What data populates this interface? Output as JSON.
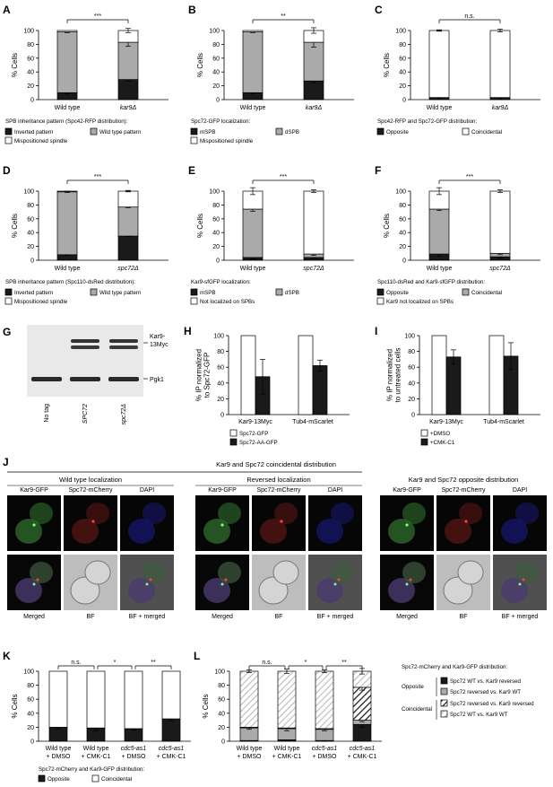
{
  "colors": {
    "black": "#1a1a1a",
    "gray": "#aaaaaa",
    "white": "#ffffff",
    "darkgray": "#555555"
  },
  "panels": {
    "A": {
      "letter": "A",
      "ylabel": "% Cells",
      "yticks": [
        "0",
        "20",
        "40",
        "60",
        "80",
        "100"
      ],
      "categories": [
        "Wild type",
        "kar9Δ"
      ],
      "italic": [
        false,
        true
      ],
      "sig": "***",
      "caption": "SPB inheritance pattern (Spc42-RFP distribution):",
      "legend": [
        {
          "label": "Inverted pattern",
          "color": "#1a1a1a"
        },
        {
          "label": "Wild type pattern",
          "color": "#aaaaaa"
        },
        {
          "label": "Mispositioned spindle",
          "color": "#ffffff"
        }
      ]
    },
    "B": {
      "letter": "B",
      "ylabel": "% Cells",
      "yticks": [
        "0",
        "20",
        "40",
        "60",
        "80",
        "100"
      ],
      "categories": [
        "Wild type",
        "kar9Δ"
      ],
      "italic": [
        false,
        true
      ],
      "sig": "**",
      "caption": "Spc72-GFP localization:",
      "legend": [
        {
          "label": "mSPB",
          "color": "#1a1a1a"
        },
        {
          "label": "dSPB",
          "color": "#aaaaaa"
        },
        {
          "label": "Mispositioned spindle",
          "color": "#ffffff"
        }
      ]
    },
    "C": {
      "letter": "C",
      "ylabel": "% Cells",
      "yticks": [
        "0",
        "20",
        "40",
        "60",
        "80",
        "100"
      ],
      "categories": [
        "Wild type",
        "kar9Δ"
      ],
      "italic": [
        false,
        true
      ],
      "sig": "n.s.",
      "caption": "Spc42-RFP and Spc72-GFP distribution:",
      "legend": [
        {
          "label": "Opposite",
          "color": "#1a1a1a"
        },
        {
          "label": "Coincidental",
          "color": "#ffffff"
        }
      ]
    },
    "D": {
      "letter": "D",
      "ylabel": "% Cells",
      "yticks": [
        "0",
        "20",
        "40",
        "60",
        "80",
        "100"
      ],
      "categories": [
        "Wild type",
        "spc72Δ"
      ],
      "italic": [
        false,
        true
      ],
      "sig": "***",
      "caption": "SPB inheritance pattern (Spc110-dsRed distribution):",
      "legend": [
        {
          "label": "Inverted pattern",
          "color": "#1a1a1a"
        },
        {
          "label": "Wild type pattern",
          "color": "#aaaaaa"
        },
        {
          "label": "Mispositioned spindle",
          "color": "#ffffff"
        }
      ]
    },
    "E": {
      "letter": "E",
      "ylabel": "% Cells",
      "yticks": [
        "0",
        "20",
        "40",
        "60",
        "80",
        "100"
      ],
      "categories": [
        "Wild type",
        "spc72Δ"
      ],
      "italic": [
        false,
        true
      ],
      "sig": "***",
      "caption": "Kar9-sfGFP localization:",
      "legend": [
        {
          "label": "mSPB",
          "color": "#1a1a1a"
        },
        {
          "label": "dSPB",
          "color": "#aaaaaa"
        },
        {
          "label": "Not localized on SPBs",
          "color": "#ffffff"
        }
      ]
    },
    "F": {
      "letter": "F",
      "ylabel": "% Cells",
      "yticks": [
        "0",
        "20",
        "40",
        "60",
        "80",
        "100"
      ],
      "categories": [
        "Wild type",
        "spc72Δ"
      ],
      "italic": [
        false,
        true
      ],
      "sig": "***",
      "caption": "Spc110-dsRed and Kar9-sfGFP distribution:",
      "legend": [
        {
          "label": "Opposite",
          "color": "#1a1a1a"
        },
        {
          "label": "Coincidental",
          "color": "#aaaaaa"
        },
        {
          "label": "Kar9 not localized on SPBs",
          "color": "#ffffff"
        }
      ]
    },
    "G": {
      "letter": "G",
      "band_labels": [
        "Kar9-",
        "13Myc",
        "Pgk1"
      ],
      "lanes": [
        "No tag",
        "SPC72",
        "spc72Δ"
      ],
      "lane_italic": [
        false,
        true,
        true
      ]
    },
    "H": {
      "letter": "H",
      "ylabel_lines": [
        "% IP normalized",
        "to Spc72-GFP"
      ],
      "yticks": [
        "0",
        "20",
        "40",
        "60",
        "80",
        "100"
      ],
      "groups": [
        "Kar9-13Myc",
        "Tub4-mScarlet"
      ],
      "legend": [
        {
          "label": "Spc72-GFP",
          "color": "#ffffff"
        },
        {
          "label": "Spc72-AA-GFP",
          "color": "#1a1a1a"
        }
      ]
    },
    "I": {
      "letter": "I",
      "ylabel_lines": [
        "% IP normalized",
        "to untreated cells"
      ],
      "yticks": [
        "0",
        "20",
        "40",
        "60",
        "80",
        "100"
      ],
      "groups": [
        "Kar9-13Myc",
        "Tub4-mScarlet"
      ],
      "legend": [
        {
          "label": "+DMSO",
          "color": "#ffffff"
        },
        {
          "label": "+CMK-C1",
          "color": "#1a1a1a"
        }
      ]
    },
    "J": {
      "letter": "J",
      "title": "Kar9 and Spc72 coincidental distribution",
      "groups": [
        {
          "title": "Wild type localization",
          "top": [
            "Kar9-GFP",
            "Spc72-mCherry",
            "DAPI"
          ],
          "bottom": [
            "Merged",
            "BF",
            "BF + merged"
          ]
        },
        {
          "title": "Reversed localization",
          "top": [
            "Kar9-GFP",
            "Spc72-mCherry",
            "DAPI"
          ],
          "bottom": [
            "Merged",
            "BF",
            "BF + merged"
          ]
        },
        {
          "title": "Kar9 and Spc72 opposite distribution",
          "top": [
            "Kar9-GFP",
            "Spc72-mCherry",
            "DAPI"
          ],
          "bottom": [
            "Merged",
            "BF",
            "BF + merged"
          ]
        }
      ]
    },
    "K": {
      "letter": "K",
      "ylabel": "% Cells",
      "yticks": [
        "0",
        "20",
        "40",
        "60",
        "80",
        "100"
      ],
      "categories": [
        [
          "Wild type",
          "+ DMSO"
        ],
        [
          "Wild type",
          "+ CMK-C1"
        ],
        [
          "cdc5-as1",
          "+ DMSO"
        ],
        [
          "cdc5-as1",
          "+ CMK-C1"
        ]
      ],
      "italic": [
        false,
        false,
        true,
        true
      ],
      "sigs": [
        "n.s.",
        "*",
        "**"
      ],
      "caption": "Spc72-mCherry and Kar9-GFP distribution:",
      "legend": [
        {
          "label": "Opposite",
          "color": "#1a1a1a"
        },
        {
          "label": "Coincidental",
          "color": "#ffffff"
        }
      ]
    },
    "L": {
      "letter": "L",
      "ylabel": "% Cells",
      "yticks": [
        "0",
        "20",
        "40",
        "60",
        "80",
        "100"
      ],
      "categories": [
        [
          "Wild type",
          "+ DMSO"
        ],
        [
          "Wild type",
          "+ CMK-C1"
        ],
        [
          "cdc5-as1",
          "+ DMSO"
        ],
        [
          "cdc5-as1",
          "+ CMK-C1"
        ]
      ],
      "italic": [
        false,
        false,
        true,
        true
      ],
      "sigs": [
        "n.s.",
        "*",
        "**"
      ],
      "legend_title": "Spc72-mCherry and Kar9-GFP distribution:",
      "group_opposite": "Opposite",
      "group_coincidental": "Coincidental",
      "legend": [
        {
          "label": "Spc72 WT vs. Kar9 reversed",
          "fill": "black"
        },
        {
          "label": "Spc72 reversed vs. Kar9 WT",
          "fill": "gray"
        },
        {
          "label": "Spc72 reversed vs. Kar9 reversed",
          "fill": "hatch-dark"
        },
        {
          "label": "Spc72 WT vs. Kar9 WT",
          "fill": "hatch-light"
        }
      ]
    }
  },
  "chart_data": [
    {
      "panel": "A",
      "type": "bar",
      "stacked": true,
      "categories": [
        "Wild type",
        "kar9Δ"
      ],
      "ylim": [
        0,
        100
      ],
      "ylabel": "% Cells",
      "series": [
        {
          "name": "Inverted pattern",
          "values": [
            10,
            29
          ],
          "errors": [
            2,
            2
          ]
        },
        {
          "name": "Wild type pattern",
          "values": [
            88,
            54
          ],
          "errors": [
            1,
            6
          ]
        },
        {
          "name": "Mispositioned spindle",
          "values": [
            2,
            17
          ],
          "errors": [
            0,
            3
          ]
        }
      ]
    },
    {
      "panel": "B",
      "type": "bar",
      "stacked": true,
      "categories": [
        "Wild type",
        "kar9Δ"
      ],
      "ylim": [
        0,
        100
      ],
      "ylabel": "% Cells",
      "series": [
        {
          "name": "mSPB",
          "values": [
            10,
            27
          ],
          "errors": [
            1,
            3
          ]
        },
        {
          "name": "dSPB",
          "values": [
            88,
            56
          ],
          "errors": [
            1,
            7
          ]
        },
        {
          "name": "Mispositioned spindle",
          "values": [
            2,
            17
          ],
          "errors": [
            0,
            4
          ]
        }
      ]
    },
    {
      "panel": "C",
      "type": "bar",
      "stacked": true,
      "categories": [
        "Wild type",
        "kar9Δ"
      ],
      "ylim": [
        0,
        100
      ],
      "ylabel": "% Cells",
      "series": [
        {
          "name": "Opposite",
          "values": [
            3,
            3
          ],
          "errors": [
            1,
            2
          ]
        },
        {
          "name": "Coincidental",
          "values": [
            97,
            97
          ],
          "errors": [
            1,
            2
          ]
        }
      ]
    },
    {
      "panel": "D",
      "type": "bar",
      "stacked": true,
      "categories": [
        "Wild type",
        "spc72Δ"
      ],
      "ylim": [
        0,
        100
      ],
      "ylabel": "% Cells",
      "series": [
        {
          "name": "Inverted pattern",
          "values": [
            8,
            35
          ],
          "errors": [
            1,
            1
          ]
        },
        {
          "name": "Wild type pattern",
          "values": [
            91,
            42
          ],
          "errors": [
            1,
            1
          ]
        },
        {
          "name": "Mispositioned spindle",
          "values": [
            1,
            23
          ],
          "errors": [
            0,
            1
          ]
        }
      ]
    },
    {
      "panel": "E",
      "type": "bar",
      "stacked": true,
      "categories": [
        "Wild type",
        "spc72Δ"
      ],
      "ylim": [
        0,
        100
      ],
      "ylabel": "% Cells",
      "series": [
        {
          "name": "mSPB",
          "values": [
            4,
            4
          ],
          "errors": [
            2,
            1
          ]
        },
        {
          "name": "dSPB",
          "values": [
            70,
            5
          ],
          "errors": [
            3,
            2
          ]
        },
        {
          "name": "Not localized on SPBs",
          "values": [
            26,
            91
          ],
          "errors": [
            5,
            2
          ]
        }
      ]
    },
    {
      "panel": "F",
      "type": "bar",
      "stacked": true,
      "categories": [
        "Wild type",
        "spc72Δ"
      ],
      "ylim": [
        0,
        100
      ],
      "ylabel": "% Cells",
      "series": [
        {
          "name": "Opposite",
          "values": [
            9,
            5
          ],
          "errors": [
            3,
            2
          ]
        },
        {
          "name": "Coincidental",
          "values": [
            65,
            5
          ],
          "errors": [
            2,
            2
          ]
        },
        {
          "name": "Kar9 not localized on SPBs",
          "values": [
            26,
            90
          ],
          "errors": [
            5,
            2
          ]
        }
      ]
    },
    {
      "panel": "H",
      "type": "bar",
      "categories": [
        "Kar9-13Myc",
        "Tub4-mScarlet"
      ],
      "ylim": [
        0,
        100
      ],
      "ylabel": "% IP normalized to Spc72-GFP",
      "series": [
        {
          "name": "Spc72-GFP",
          "values": [
            100,
            100
          ],
          "errors": [
            0,
            0
          ]
        },
        {
          "name": "Spc72-AA-GFP",
          "values": [
            48,
            62
          ],
          "errors": [
            22,
            7
          ]
        }
      ]
    },
    {
      "panel": "I",
      "type": "bar",
      "categories": [
        "Kar9-13Myc",
        "Tub4-mScarlet"
      ],
      "ylim": [
        0,
        100
      ],
      "ylabel": "% IP normalized to untreated cells",
      "series": [
        {
          "name": "+DMSO",
          "values": [
            100,
            100
          ],
          "errors": [
            0,
            0
          ]
        },
        {
          "name": "+CMK-C1",
          "values": [
            73,
            74
          ],
          "errors": [
            9,
            17
          ]
        }
      ]
    },
    {
      "panel": "K",
      "type": "bar",
      "stacked": true,
      "categories": [
        "Wild type + DMSO",
        "Wild type + CMK-C1",
        "cdc5-as1 + DMSO",
        "cdc5-as1 + CMK-C1"
      ],
      "ylim": [
        0,
        100
      ],
      "ylabel": "% Cells",
      "series": [
        {
          "name": "Opposite",
          "values": [
            20,
            19,
            18,
            32
          ],
          "errors": [
            3,
            4,
            2,
            3
          ]
        },
        {
          "name": "Coincidental",
          "values": [
            80,
            81,
            82,
            68
          ],
          "errors": [
            0,
            0,
            0,
            0
          ]
        }
      ]
    },
    {
      "panel": "L",
      "type": "bar",
      "stacked": true,
      "categories": [
        "Wild type + DMSO",
        "Wild type + CMK-C1",
        "cdc5-as1 + DMSO",
        "cdc5-as1 + CMK-C1"
      ],
      "ylim": [
        0,
        100
      ],
      "ylabel": "% Cells",
      "series": [
        {
          "name": "Spc72 WT vs. Kar9 reversed",
          "values": [
            1,
            2,
            1,
            24
          ],
          "errors": [
            0,
            1,
            1,
            4
          ]
        },
        {
          "name": "Spc72 reversed vs. Kar9 WT",
          "values": [
            18,
            16,
            16,
            6
          ],
          "errors": [
            2,
            3,
            2,
            2
          ]
        },
        {
          "name": "Spc72 reversed vs. Kar9 reversed",
          "values": [
            1,
            1,
            1,
            47
          ],
          "errors": [
            0,
            0,
            0,
            4
          ]
        },
        {
          "name": "Spc72 WT vs. Kar9 WT",
          "values": [
            80,
            81,
            82,
            23
          ],
          "errors": [
            2,
            3,
            2,
            4
          ]
        }
      ]
    }
  ]
}
